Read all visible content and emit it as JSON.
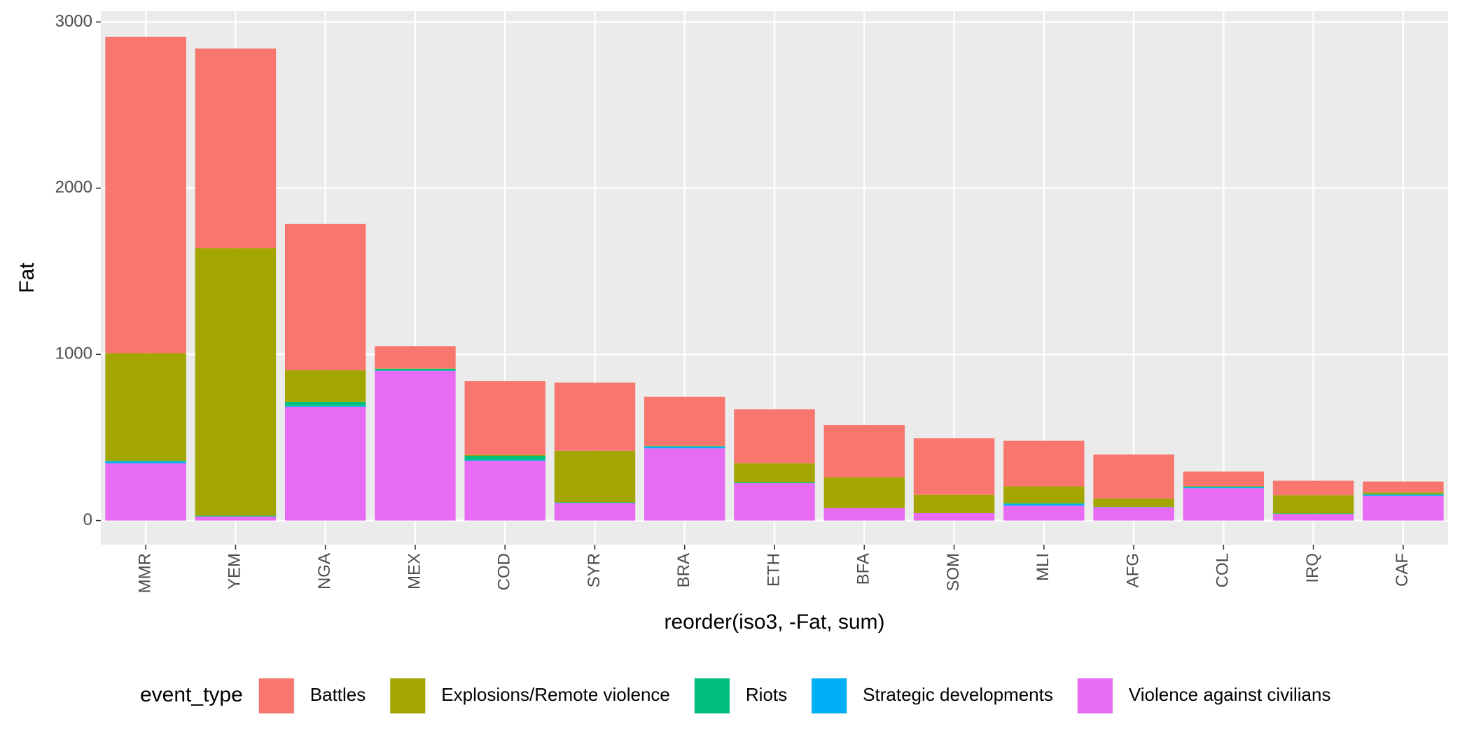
{
  "chart_data": {
    "type": "stacked_bar",
    "x_label": "reorder(iso3, -Fat, sum)",
    "y_label": "Fat",
    "legend_title": "event_type",
    "legend_position": "bottom",
    "grid": true,
    "categories": [
      "MMR",
      "YEM",
      "NGA",
      "MEX",
      "COD",
      "SYR",
      "BRA",
      "ETH",
      "BFA",
      "SOM",
      "MLI",
      "AFG",
      "COL",
      "IRQ",
      "CAF"
    ],
    "series": [
      {
        "name": "Battles",
        "color": "#F8766D",
        "values": [
          1902,
          1200,
          880,
          135,
          445,
          410,
          295,
          325,
          315,
          340,
          275,
          265,
          87,
          87,
          65
        ]
      },
      {
        "name": "Explosions/Remote violence",
        "color": "#A3A500",
        "values": [
          648,
          1610,
          190,
          2,
          5,
          310,
          2,
          115,
          185,
          110,
          100,
          50,
          3,
          110,
          10
        ]
      },
      {
        "name": "Riots",
        "color": "#00BF7D",
        "values": [
          5,
          5,
          25,
          10,
          25,
          3,
          3,
          3,
          0,
          0,
          5,
          0,
          5,
          3,
          5
        ]
      },
      {
        "name": "Strategic developments",
        "color": "#00B0F6",
        "values": [
          10,
          0,
          5,
          3,
          5,
          2,
          10,
          2,
          0,
          0,
          10,
          2,
          5,
          0,
          5
        ]
      },
      {
        "name": "Violence against civilians",
        "color": "#E76BF3",
        "values": [
          345,
          25,
          685,
          900,
          360,
          105,
          435,
          225,
          75,
          45,
          90,
          80,
          195,
          40,
          150
        ]
      }
    ],
    "ylim": [
      -145,
      3065
    ],
    "yticks": [
      0,
      1000,
      2000,
      3000
    ]
  }
}
